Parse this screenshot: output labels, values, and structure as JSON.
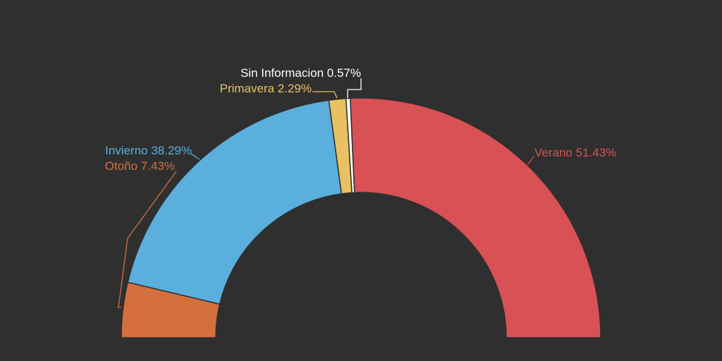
{
  "chart_data": {
    "type": "pie",
    "variant": "semi-donut",
    "title": "",
    "series": [
      {
        "name": "",
        "slices": [
          {
            "label": "Otoño",
            "value": 7.43,
            "display": "Otoño 7.43%",
            "color": "#d3703e"
          },
          {
            "label": "Invierno",
            "value": 38.29,
            "display": "Invierno 38.29%",
            "color": "#5aafdc"
          },
          {
            "label": "Primavera",
            "value": 2.29,
            "display": "Primavera 2.29%",
            "color": "#e9c163"
          },
          {
            "label": "Sin Informacion",
            "value": 0.57,
            "display": "Sin Informacion 0.57%",
            "color": "#ffffff"
          },
          {
            "label": "Verano",
            "value": 51.43,
            "display": "Verano 51.43%",
            "color": "#d75155"
          }
        ]
      }
    ],
    "legend": "none"
  }
}
